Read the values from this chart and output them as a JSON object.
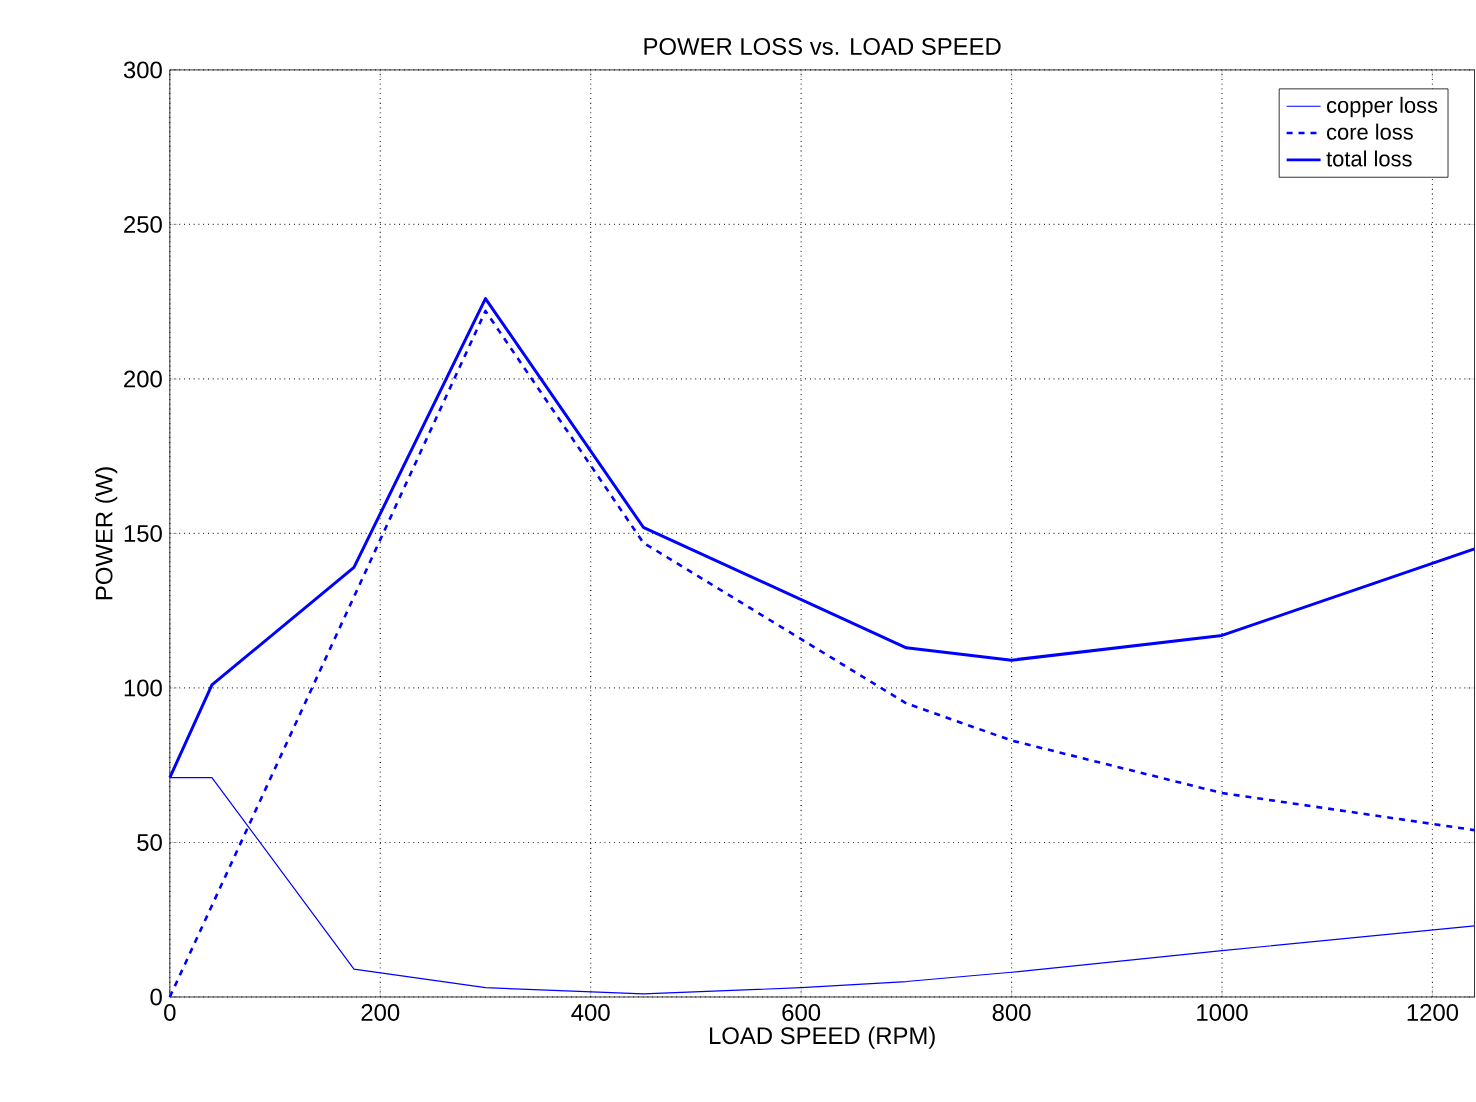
{
  "chart_data": {
    "type": "line",
    "title": "POWER LOSS vs. LOAD SPEED",
    "xlabel": "LOAD SPEED (RPM)",
    "ylabel": "POWER (W)",
    "xlim": [
      0,
      1240
    ],
    "ylim": [
      0,
      300
    ],
    "xticks": [
      0,
      200,
      400,
      600,
      800,
      1000,
      1200
    ],
    "yticks": [
      0,
      50,
      100,
      150,
      200,
      250,
      300
    ],
    "grid": true,
    "legend": "top right",
    "series": [
      {
        "name": "copper loss",
        "color": "#0000ff",
        "line_style": "solid",
        "x": [
          0,
          40,
          175,
          300,
          450,
          600,
          700,
          800,
          1000,
          1240
        ],
        "values": [
          71,
          71,
          9,
          3,
          1,
          3,
          5,
          8,
          15,
          23
        ]
      },
      {
        "name": "core loss",
        "color": "#0000ff",
        "line_style": "dashed",
        "x": [
          0,
          300,
          450,
          700,
          800,
          1000,
          1240
        ],
        "values": [
          0,
          222,
          147,
          95,
          83,
          66,
          54
        ]
      },
      {
        "name": "total loss",
        "color": "#0000ff",
        "line_style": "solid",
        "x": [
          0,
          40,
          175,
          300,
          450,
          700,
          800,
          1000,
          1240
        ],
        "values": [
          71,
          101,
          139,
          226,
          152,
          113,
          109,
          117,
          145
        ]
      }
    ]
  }
}
